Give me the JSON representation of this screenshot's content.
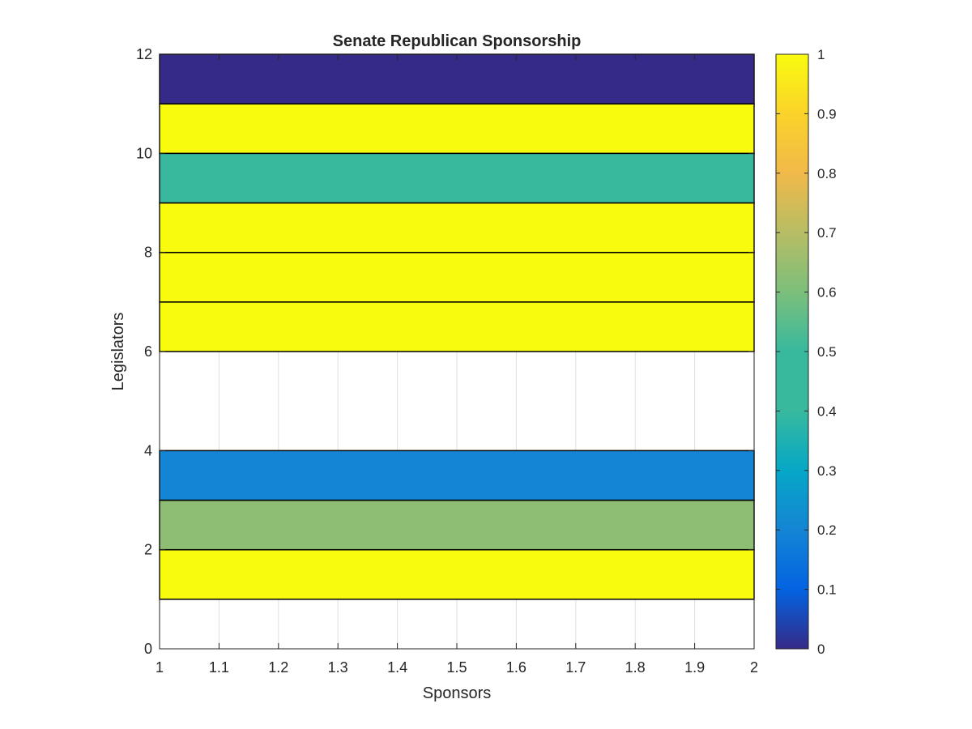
{
  "chart_data": {
    "type": "heatmap",
    "title": "Senate Republican Sponsorship",
    "xlabel": "Sponsors",
    "ylabel": "Legislators",
    "xlim": [
      1,
      2
    ],
    "ylim": [
      0,
      12
    ],
    "x_ticks": [
      "1",
      "1.1",
      "1.2",
      "1.3",
      "1.4",
      "1.5",
      "1.6",
      "1.7",
      "1.8",
      "1.9",
      "2"
    ],
    "y_ticks": [
      "0",
      "2",
      "4",
      "6",
      "8",
      "10",
      "12"
    ],
    "grid": "vertical",
    "colormap": "parula",
    "colorbar": {
      "range": [
        0,
        1
      ],
      "ticks": [
        "0",
        "0.1",
        "0.2",
        "0.3",
        "0.4",
        "0.5",
        "0.6",
        "0.7",
        "0.8",
        "0.9",
        "1"
      ],
      "placement": "right"
    },
    "cells": [
      {
        "y0": 1,
        "y1": 2,
        "x0": 1,
        "x1": 2,
        "value": 1.0
      },
      {
        "y0": 2,
        "y1": 3,
        "x0": 1,
        "x1": 2,
        "value": 0.63
      },
      {
        "y0": 3,
        "y1": 4,
        "x0": 1,
        "x1": 2,
        "value": 0.2
      },
      {
        "y0": 6,
        "y1": 7,
        "x0": 1,
        "x1": 2,
        "value": 1.0
      },
      {
        "y0": 7,
        "y1": 8,
        "x0": 1,
        "x1": 2,
        "value": 1.0
      },
      {
        "y0": 8,
        "y1": 9,
        "x0": 1,
        "x1": 2,
        "value": 1.0
      },
      {
        "y0": 9,
        "y1": 10,
        "x0": 1,
        "x1": 2,
        "value": 0.5
      },
      {
        "y0": 10,
        "y1": 11,
        "x0": 1,
        "x1": 2,
        "value": 1.0
      },
      {
        "y0": 11,
        "y1": 12,
        "x0": 1,
        "x1": 2,
        "value": 0.0
      }
    ]
  }
}
